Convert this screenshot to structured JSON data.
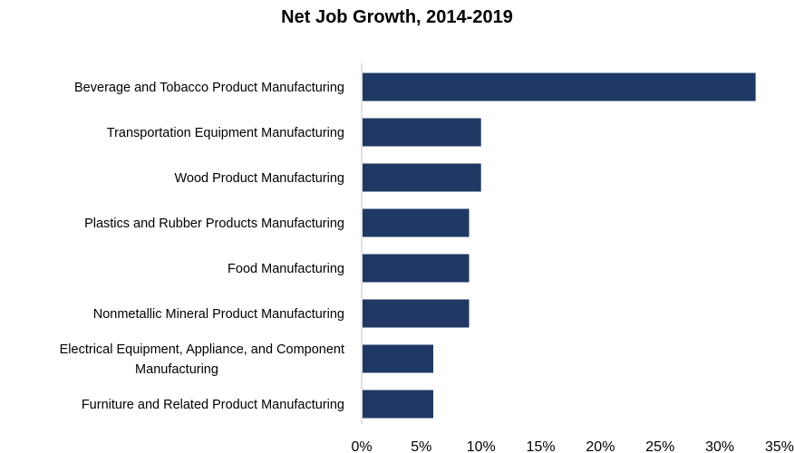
{
  "chart_data": {
    "type": "bar",
    "orientation": "horizontal",
    "title": "Net Job Growth, 2014-2019",
    "xlabel": "",
    "ylabel": "",
    "categories": [
      [
        "Beverage and Tobacco Product Manufacturing"
      ],
      [
        "Transportation Equipment Manufacturing"
      ],
      [
        "Wood Product Manufacturing"
      ],
      [
        "Plastics and Rubber Products Manufacturing"
      ],
      [
        "Food Manufacturing"
      ],
      [
        "Nonmetallic Mineral Product Manufacturing"
      ],
      [
        "Electrical Equipment, Appliance, and Component",
        "Manufacturing"
      ],
      [
        "Furniture and Related Product Manufacturing"
      ]
    ],
    "values": [
      33,
      10,
      10,
      9,
      9,
      9,
      6,
      6
    ],
    "xlim": [
      0,
      35
    ],
    "ticks": [
      0,
      5,
      10,
      15,
      20,
      25,
      30,
      35
    ],
    "tick_labels": [
      "0%",
      "5%",
      "10%",
      "15%",
      "20%",
      "25%",
      "30%",
      "35%"
    ],
    "grid": false,
    "legend": "none",
    "bar_color": "#1f3864",
    "axis_color": "#d9d9d9"
  }
}
